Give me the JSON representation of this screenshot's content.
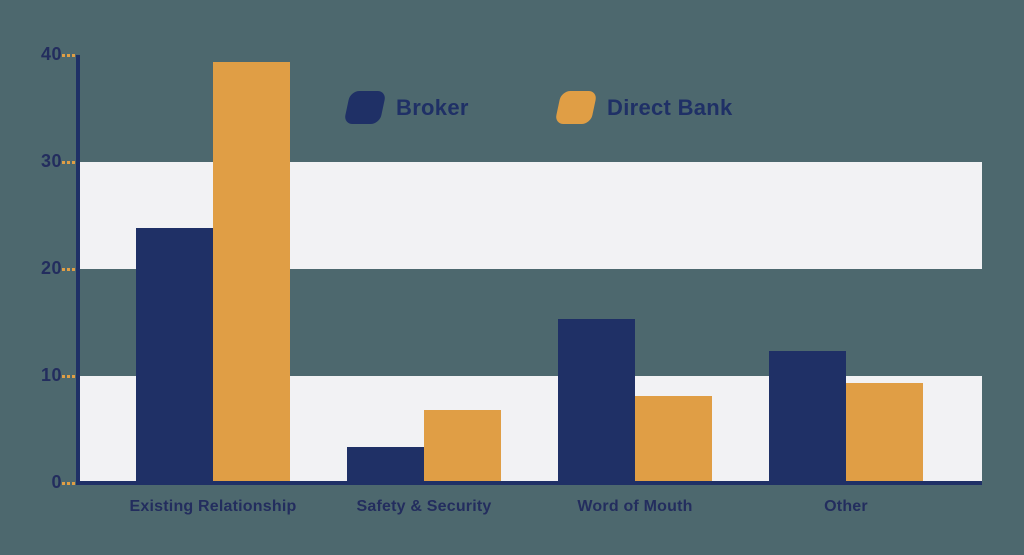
{
  "chart_data": {
    "type": "bar",
    "categories": [
      "Existing Relationship",
      "Safety & Security",
      "Word of Mouth",
      "Other"
    ],
    "series": [
      {
        "name": "Broker",
        "color": "#1f3066",
        "values": [
          23.8,
          3.4,
          15.3,
          12.3
        ]
      },
      {
        "name": "Direct Bank",
        "color": "#e09e45",
        "values": [
          39.3,
          6.8,
          8.1,
          9.3
        ]
      }
    ],
    "title": "",
    "xlabel": "",
    "ylabel": "",
    "ylim": [
      0,
      40
    ],
    "yticks": [
      0,
      10,
      20,
      30,
      40
    ],
    "grid": false,
    "band_ranges": [
      [
        0,
        10
      ],
      [
        20,
        30
      ]
    ],
    "legend_position": "top-center"
  },
  "colors": {
    "background": "#4d686e",
    "band": "#f2f2f4",
    "axis": "#1f3066",
    "tick_mark": "#e09e45",
    "axis_label": "#232d5e"
  }
}
